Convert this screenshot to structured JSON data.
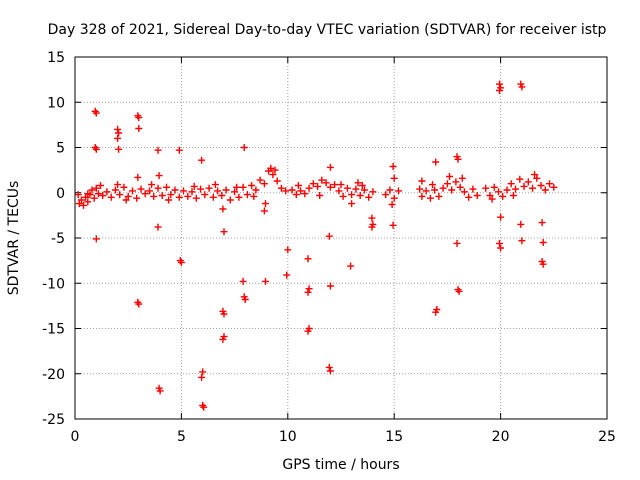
{
  "chart_data": {
    "type": "scatter",
    "title": "Day 328 of 2021, Sidereal Day-to-day VTEC variation (SDTVAR) for receiver istp",
    "xlabel": "GPS time / hours",
    "ylabel": "SDTVAR / TECUs",
    "xlim": [
      0,
      25
    ],
    "ylim": [
      -25,
      15
    ],
    "x_ticks": [
      0,
      5,
      10,
      15,
      20,
      25
    ],
    "x_tick_labels": [
      "0",
      "5",
      "10",
      "15",
      "20",
      "25"
    ],
    "y_ticks": [
      15,
      10,
      5,
      0,
      -5,
      -10,
      -15,
      -20,
      -25
    ],
    "y_tick_labels": [
      "15",
      "10",
      "5",
      "0",
      "-5",
      "-10",
      "-15",
      "-20",
      "-25"
    ],
    "grid": true,
    "marker": "+",
    "series": [
      {
        "name": "SDTVAR",
        "color": "#ff0000",
        "points": [
          [
            0.2,
            -1.2
          ],
          [
            0.3,
            -0.8
          ],
          [
            0.4,
            -1.4
          ],
          [
            0.5,
            -0.5
          ],
          [
            0.6,
            -1.0
          ],
          [
            0.7,
            -0.2
          ],
          [
            0.8,
            0.3
          ],
          [
            0.9,
            -0.6
          ],
          [
            1.0,
            0.5
          ],
          [
            1.1,
            -0.1
          ],
          [
            0.95,
            9.0
          ],
          [
            1.0,
            8.8
          ],
          [
            0.95,
            5.0
          ],
          [
            1.0,
            4.8
          ],
          [
            1.0,
            -5.1
          ],
          [
            1.3,
            -0.3
          ],
          [
            1.5,
            0.1
          ],
          [
            1.7,
            -0.5
          ],
          [
            1.9,
            0.3
          ],
          [
            2.1,
            -0.2
          ],
          [
            2.3,
            0.6
          ],
          [
            2.5,
            -0.4
          ],
          [
            2.7,
            0.2
          ],
          [
            2.9,
            -0.6
          ],
          [
            3.1,
            0.4
          ],
          [
            3.3,
            -0.1
          ],
          [
            2.0,
            7.0
          ],
          [
            2.05,
            6.6
          ],
          [
            2.0,
            6.0
          ],
          [
            2.05,
            4.8
          ],
          [
            2.0,
            0.9
          ],
          [
            2.95,
            8.5
          ],
          [
            3.0,
            8.3
          ],
          [
            3.0,
            7.1
          ],
          [
            2.95,
            1.7
          ],
          [
            3.0,
            -12.3
          ],
          [
            2.95,
            -12.1
          ],
          [
            3.5,
            0.2
          ],
          [
            3.7,
            -0.4
          ],
          [
            3.9,
            0.5
          ],
          [
            4.1,
            -0.3
          ],
          [
            4.3,
            0.6
          ],
          [
            4.5,
            -0.2
          ],
          [
            4.7,
            0.3
          ],
          [
            4.9,
            -0.5
          ],
          [
            5.1,
            0.2
          ],
          [
            5.3,
            -0.4
          ],
          [
            3.9,
            4.7
          ],
          [
            3.95,
            1.9
          ],
          [
            3.9,
            -3.8
          ],
          [
            3.95,
            -21.6
          ],
          [
            4.0,
            -21.9
          ],
          [
            4.9,
            4.7
          ],
          [
            4.95,
            -7.5
          ],
          [
            5.0,
            -7.7
          ],
          [
            5.5,
            0.1
          ],
          [
            5.7,
            -0.6
          ],
          [
            5.9,
            0.4
          ],
          [
            6.1,
            -0.2
          ],
          [
            6.3,
            0.5
          ],
          [
            6.5,
            -0.5
          ],
          [
            6.7,
            0.2
          ],
          [
            6.9,
            -0.3
          ],
          [
            7.1,
            0.3
          ],
          [
            7.3,
            -0.8
          ],
          [
            5.95,
            3.6
          ],
          [
            6.0,
            -19.8
          ],
          [
            5.95,
            -20.4
          ],
          [
            6.0,
            -23.5
          ],
          [
            6.05,
            -23.7
          ],
          [
            6.95,
            -1.8
          ],
          [
            7.0,
            -4.3
          ],
          [
            6.95,
            -13.1
          ],
          [
            7.0,
            -13.4
          ],
          [
            7.0,
            -15.9
          ],
          [
            6.95,
            -16.2
          ],
          [
            7.5,
            0.1
          ],
          [
            7.7,
            -0.5
          ],
          [
            7.9,
            0.6
          ],
          [
            8.1,
            -0.2
          ],
          [
            8.3,
            0.8
          ],
          [
            8.5,
            0.3
          ],
          [
            8.7,
            1.4
          ],
          [
            8.9,
            1.0
          ],
          [
            9.1,
            2.4
          ],
          [
            9.3,
            2.0
          ],
          [
            9.5,
            1.3
          ],
          [
            9.7,
            0.5
          ],
          [
            9.9,
            0.2
          ],
          [
            7.95,
            5.0
          ],
          [
            7.9,
            -9.8
          ],
          [
            7.95,
            -11.5
          ],
          [
            8.0,
            -11.8
          ],
          [
            8.95,
            -1.2
          ],
          [
            8.9,
            -2.0
          ],
          [
            8.95,
            -9.8
          ],
          [
            9.2,
            2.7
          ],
          [
            9.4,
            2.5
          ],
          [
            10.0,
            -6.3
          ],
          [
            9.95,
            -9.1
          ],
          [
            10.2,
            0.3
          ],
          [
            10.4,
            -0.2
          ],
          [
            10.6,
            0.2
          ],
          [
            10.8,
            -0.1
          ],
          [
            11.0,
            0.5
          ],
          [
            11.2,
            1.0
          ],
          [
            11.4,
            0.7
          ],
          [
            11.6,
            1.4
          ],
          [
            11.8,
            1.1
          ],
          [
            12.0,
            0.6
          ],
          [
            12.2,
            0.9
          ],
          [
            10.95,
            -7.3
          ],
          [
            11.0,
            -10.6
          ],
          [
            10.95,
            -11.0
          ],
          [
            11.0,
            -15.0
          ],
          [
            10.95,
            -15.3
          ],
          [
            12.0,
            2.8
          ],
          [
            11.95,
            -4.8
          ],
          [
            12.0,
            -10.3
          ],
          [
            11.95,
            -19.3
          ],
          [
            12.0,
            -19.7
          ],
          [
            12.4,
            0.2
          ],
          [
            12.6,
            -0.4
          ],
          [
            12.8,
            0.5
          ],
          [
            13.0,
            -0.2
          ],
          [
            13.2,
            0.4
          ],
          [
            13.4,
            -0.3
          ],
          [
            13.6,
            0.3
          ],
          [
            13.8,
            -0.5
          ],
          [
            14.0,
            0.1
          ],
          [
            12.95,
            -8.1
          ],
          [
            13.0,
            -1.2
          ],
          [
            13.3,
            1.1
          ],
          [
            13.95,
            -2.8
          ],
          [
            14.0,
            -3.5
          ],
          [
            13.95,
            -3.8
          ],
          [
            14.6,
            -0.2
          ],
          [
            14.8,
            0.3
          ],
          [
            15.0,
            -0.6
          ],
          [
            15.2,
            0.2
          ],
          [
            14.9,
            -1.3
          ],
          [
            14.95,
            2.9
          ],
          [
            15.0,
            1.6
          ],
          [
            14.95,
            -3.6
          ],
          [
            16.2,
            0.4
          ],
          [
            16.3,
            1.3
          ],
          [
            16.3,
            -0.4
          ],
          [
            16.5,
            0.2
          ],
          [
            16.7,
            -0.6
          ],
          [
            16.9,
            0.3
          ],
          [
            17.1,
            -0.4
          ],
          [
            17.3,
            0.5
          ],
          [
            17.5,
            1.0
          ],
          [
            17.7,
            0.3
          ],
          [
            17.9,
            1.2
          ],
          [
            18.1,
            0.6
          ],
          [
            18.3,
            0.1
          ],
          [
            18.5,
            -0.5
          ],
          [
            18.7,
            0.4
          ],
          [
            18.9,
            -0.3
          ],
          [
            16.95,
            3.4
          ],
          [
            17.0,
            -12.9
          ],
          [
            16.95,
            -13.2
          ],
          [
            17.95,
            4.0
          ],
          [
            18.0,
            3.7
          ],
          [
            17.95,
            -5.6
          ],
          [
            18.0,
            -10.7
          ],
          [
            18.05,
            -10.9
          ],
          [
            19.3,
            0.5
          ],
          [
            19.5,
            -0.3
          ],
          [
            19.7,
            0.6
          ],
          [
            19.9,
            0.1
          ],
          [
            20.1,
            -0.4
          ],
          [
            20.3,
            0.3
          ],
          [
            20.5,
            1.0
          ],
          [
            20.7,
            0.4
          ],
          [
            20.9,
            1.5
          ],
          [
            21.1,
            0.7
          ],
          [
            19.95,
            12.0
          ],
          [
            20.0,
            11.6
          ],
          [
            19.95,
            11.3
          ],
          [
            20.0,
            -2.7
          ],
          [
            19.95,
            -5.6
          ],
          [
            20.0,
            -6.1
          ],
          [
            20.95,
            12.0
          ],
          [
            21.0,
            11.7
          ],
          [
            20.95,
            -3.5
          ],
          [
            21.0,
            -5.3
          ],
          [
            21.3,
            1.2
          ],
          [
            21.5,
            0.5
          ],
          [
            21.7,
            1.6
          ],
          [
            21.9,
            0.8
          ],
          [
            22.1,
            0.3
          ],
          [
            22.3,
            1.0
          ],
          [
            22.5,
            0.6
          ],
          [
            21.95,
            -3.3
          ],
          [
            22.0,
            -5.5
          ],
          [
            21.95,
            -7.6
          ],
          [
            22.0,
            -7.9
          ],
          [
            0.15,
            -0.2
          ],
          [
            0.6,
            -0.1
          ],
          [
            1.2,
            0.8
          ],
          [
            2.4,
            -0.8
          ],
          [
            3.6,
            0.9
          ],
          [
            4.4,
            -0.8
          ],
          [
            5.6,
            0.7
          ],
          [
            6.6,
            0.9
          ],
          [
            7.6,
            0.6
          ],
          [
            8.4,
            -0.4
          ],
          [
            10.5,
            0.8
          ],
          [
            11.5,
            -0.3
          ],
          [
            12.5,
            0.9
          ],
          [
            13.5,
            0.8
          ],
          [
            16.8,
            0.9
          ],
          [
            17.6,
            1.8
          ],
          [
            18.2,
            1.6
          ],
          [
            19.6,
            -0.7
          ],
          [
            20.6,
            -0.3
          ],
          [
            21.6,
            2.0
          ]
        ]
      }
    ]
  }
}
